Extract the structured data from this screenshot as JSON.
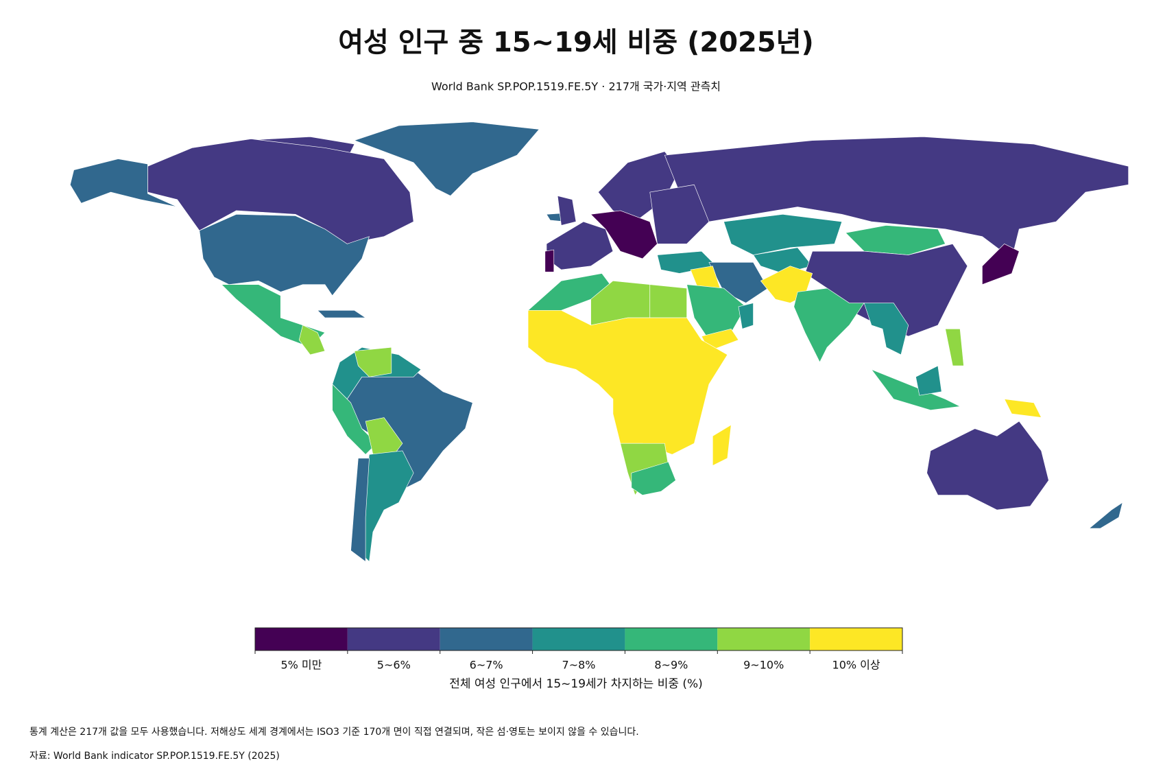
{
  "title": "여성 인구 중 15~19세 비중 (2025년)",
  "subtitle": "World Bank SP.POP.1519.FE.5Y · 217개 국가·지역 관측치",
  "legend": {
    "title": "전체 여성 인구에서 15~19세가 차지하는 비중 (%)",
    "items": [
      {
        "label": "5% 미만",
        "color": "#440154"
      },
      {
        "label": "5~6%",
        "color": "#443983"
      },
      {
        "label": "6~7%",
        "color": "#31688e"
      },
      {
        "label": "7~8%",
        "color": "#21918c"
      },
      {
        "label": "8~9%",
        "color": "#35b779"
      },
      {
        "label": "9~10%",
        "color": "#90d743"
      },
      {
        "label": "10% 이상",
        "color": "#fde725"
      }
    ]
  },
  "notes": [
    "통계 계산은 217개 값을 모두 사용했습니다. 저해상도 세계 경계에서는 ISO3 기준 170개 면이 직접 연결되며, 작은 섬·영토는 보이지 않을 수 있습니다.",
    "자료: World Bank indicator SP.POP.1519.FE.5Y (2025)"
  ]
}
